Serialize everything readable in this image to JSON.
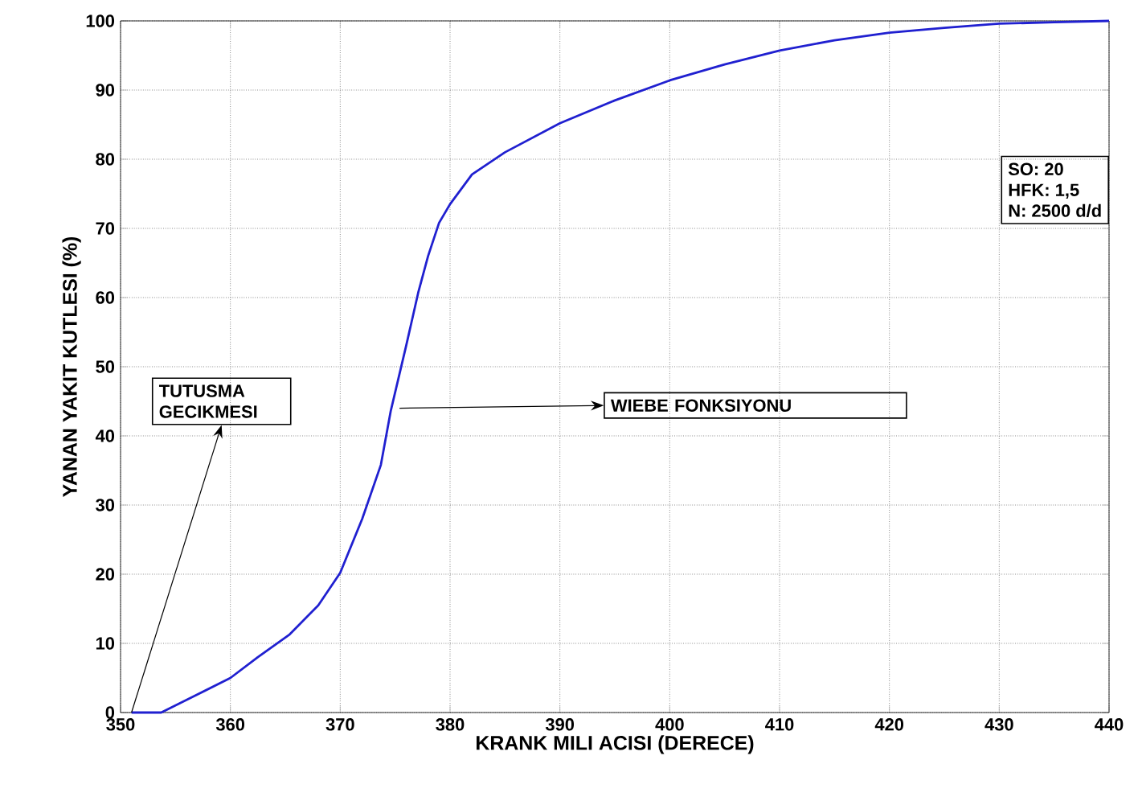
{
  "chart_data": {
    "type": "line",
    "xlabel": "KRANK MILI ACISI (DERECE)",
    "ylabel": "YANAN YAKIT KUTLESI (%)",
    "x": [
      351,
      353.7,
      356.6,
      360,
      362.5,
      365.4,
      368,
      370,
      372,
      373.7,
      374.6,
      376,
      377.1,
      378,
      379,
      380,
      382,
      385,
      390,
      395,
      400,
      405,
      410,
      415,
      420,
      425,
      430,
      435,
      440
    ],
    "series": [
      {
        "color": "#2020d0",
        "values": [
          0,
          0,
          2.3,
          5,
          8,
          11.3,
          15.5,
          20.2,
          28,
          35.8,
          43.6,
          53,
          60.7,
          66,
          70.8,
          73.5,
          77.8,
          81,
          85.2,
          88.5,
          91.4,
          93.7,
          95.7,
          97.2,
          98.3,
          99,
          99.6,
          99.8,
          100
        ]
      }
    ],
    "xlim": [
      350,
      440
    ],
    "ylim": [
      0,
      100
    ],
    "xticks": [
      350,
      360,
      370,
      380,
      390,
      400,
      410,
      420,
      430,
      440
    ],
    "yticks": [
      0,
      10,
      20,
      30,
      40,
      50,
      60,
      70,
      80,
      90,
      100
    ],
    "grid": true,
    "marker": "none",
    "line_style": "solid",
    "legend": false,
    "annotations": [
      {
        "text": "TUTUSMA GECIKMESI",
        "x": 351,
        "y": 0
      },
      {
        "text": "WIEBE FONKSIYONU",
        "x": 375.4,
        "y": 44
      },
      "SO: 20",
      "HFK: 1,5",
      "N: 2500 d/d"
    ]
  }
}
